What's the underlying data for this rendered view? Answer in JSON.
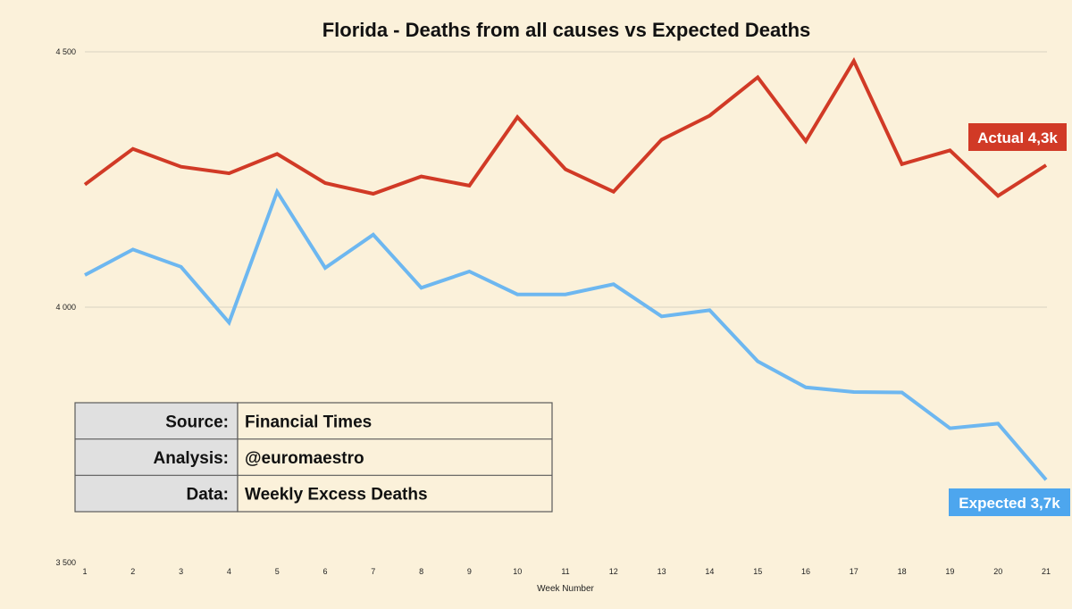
{
  "chart_data": {
    "type": "line",
    "title": "Florida - Deaths from all causes vs Expected Deaths",
    "xlabel": "Week Number",
    "ylabel": "",
    "x": [
      1,
      2,
      3,
      4,
      5,
      6,
      7,
      8,
      9,
      10,
      11,
      12,
      13,
      14,
      15,
      16,
      17,
      18,
      19,
      20,
      21
    ],
    "ylim": [
      3500,
      4500
    ],
    "yticks": [
      3500,
      4000,
      4500
    ],
    "ytick_labels": [
      "3 500",
      "4 000",
      "4 500"
    ],
    "grid": true,
    "series": [
      {
        "name": "Actual",
        "color": "#d13a26",
        "values": [
          4240,
          4310,
          4275,
          4262,
          4300,
          4243,
          4222,
          4256,
          4238,
          4372,
          4270,
          4226,
          4328,
          4375,
          4450,
          4325,
          4482,
          4280,
          4307,
          4218,
          4278
        ],
        "callout": "Actual 4,3k"
      },
      {
        "name": "Expected",
        "color": "#6db7f0",
        "values": [
          4063,
          4113,
          4079,
          3970,
          4226,
          4077,
          4142,
          4038,
          4070,
          4025,
          4025,
          4045,
          3982,
          3994,
          3894,
          3843,
          3834,
          3833,
          3763,
          3772,
          3662
        ],
        "callout": "Expected 3,7k"
      }
    ]
  },
  "info_table": [
    {
      "label": "Source:",
      "value": "Financial Times"
    },
    {
      "label": "Analysis:",
      "value": "@euromaestro"
    },
    {
      "label": "Data:",
      "value": "Weekly Excess Deaths"
    }
  ]
}
